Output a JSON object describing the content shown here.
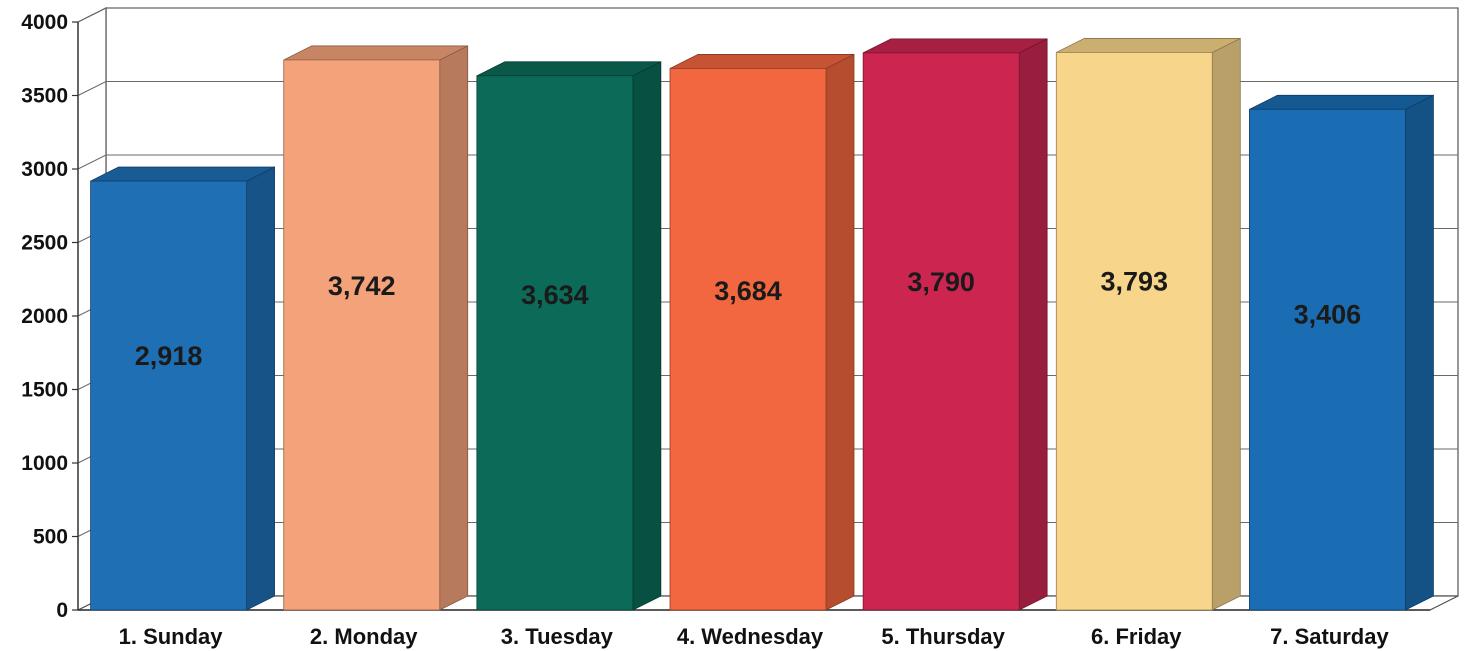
{
  "chart_data": {
    "type": "bar",
    "title": "",
    "xlabel": "",
    "ylabel": "",
    "categories": [
      "1. Sunday",
      "2. Monday",
      "3. Tuesday",
      "4. Wednesday",
      "5. Thursday",
      "6. Friday",
      "7. Saturday"
    ],
    "values": [
      2918,
      3742,
      3634,
      3684,
      3790,
      3793,
      3406
    ],
    "data_labels": [
      "2,918",
      "3,742",
      "3,634",
      "3,684",
      "3,790",
      "3,793",
      "3,406"
    ],
    "yticks": [
      "0",
      "500",
      "1000",
      "1500",
      "2000",
      "2500",
      "3000",
      "3500",
      "4000"
    ],
    "ylim": [
      0,
      4000
    ],
    "grid": true,
    "legend": "none",
    "style": "3d-bar",
    "colors": [
      "#1f6fb4",
      "#f4a27a",
      "#0b6b58",
      "#f2673f",
      "#cc2650",
      "#f7d58a",
      "#1a6db3"
    ]
  }
}
